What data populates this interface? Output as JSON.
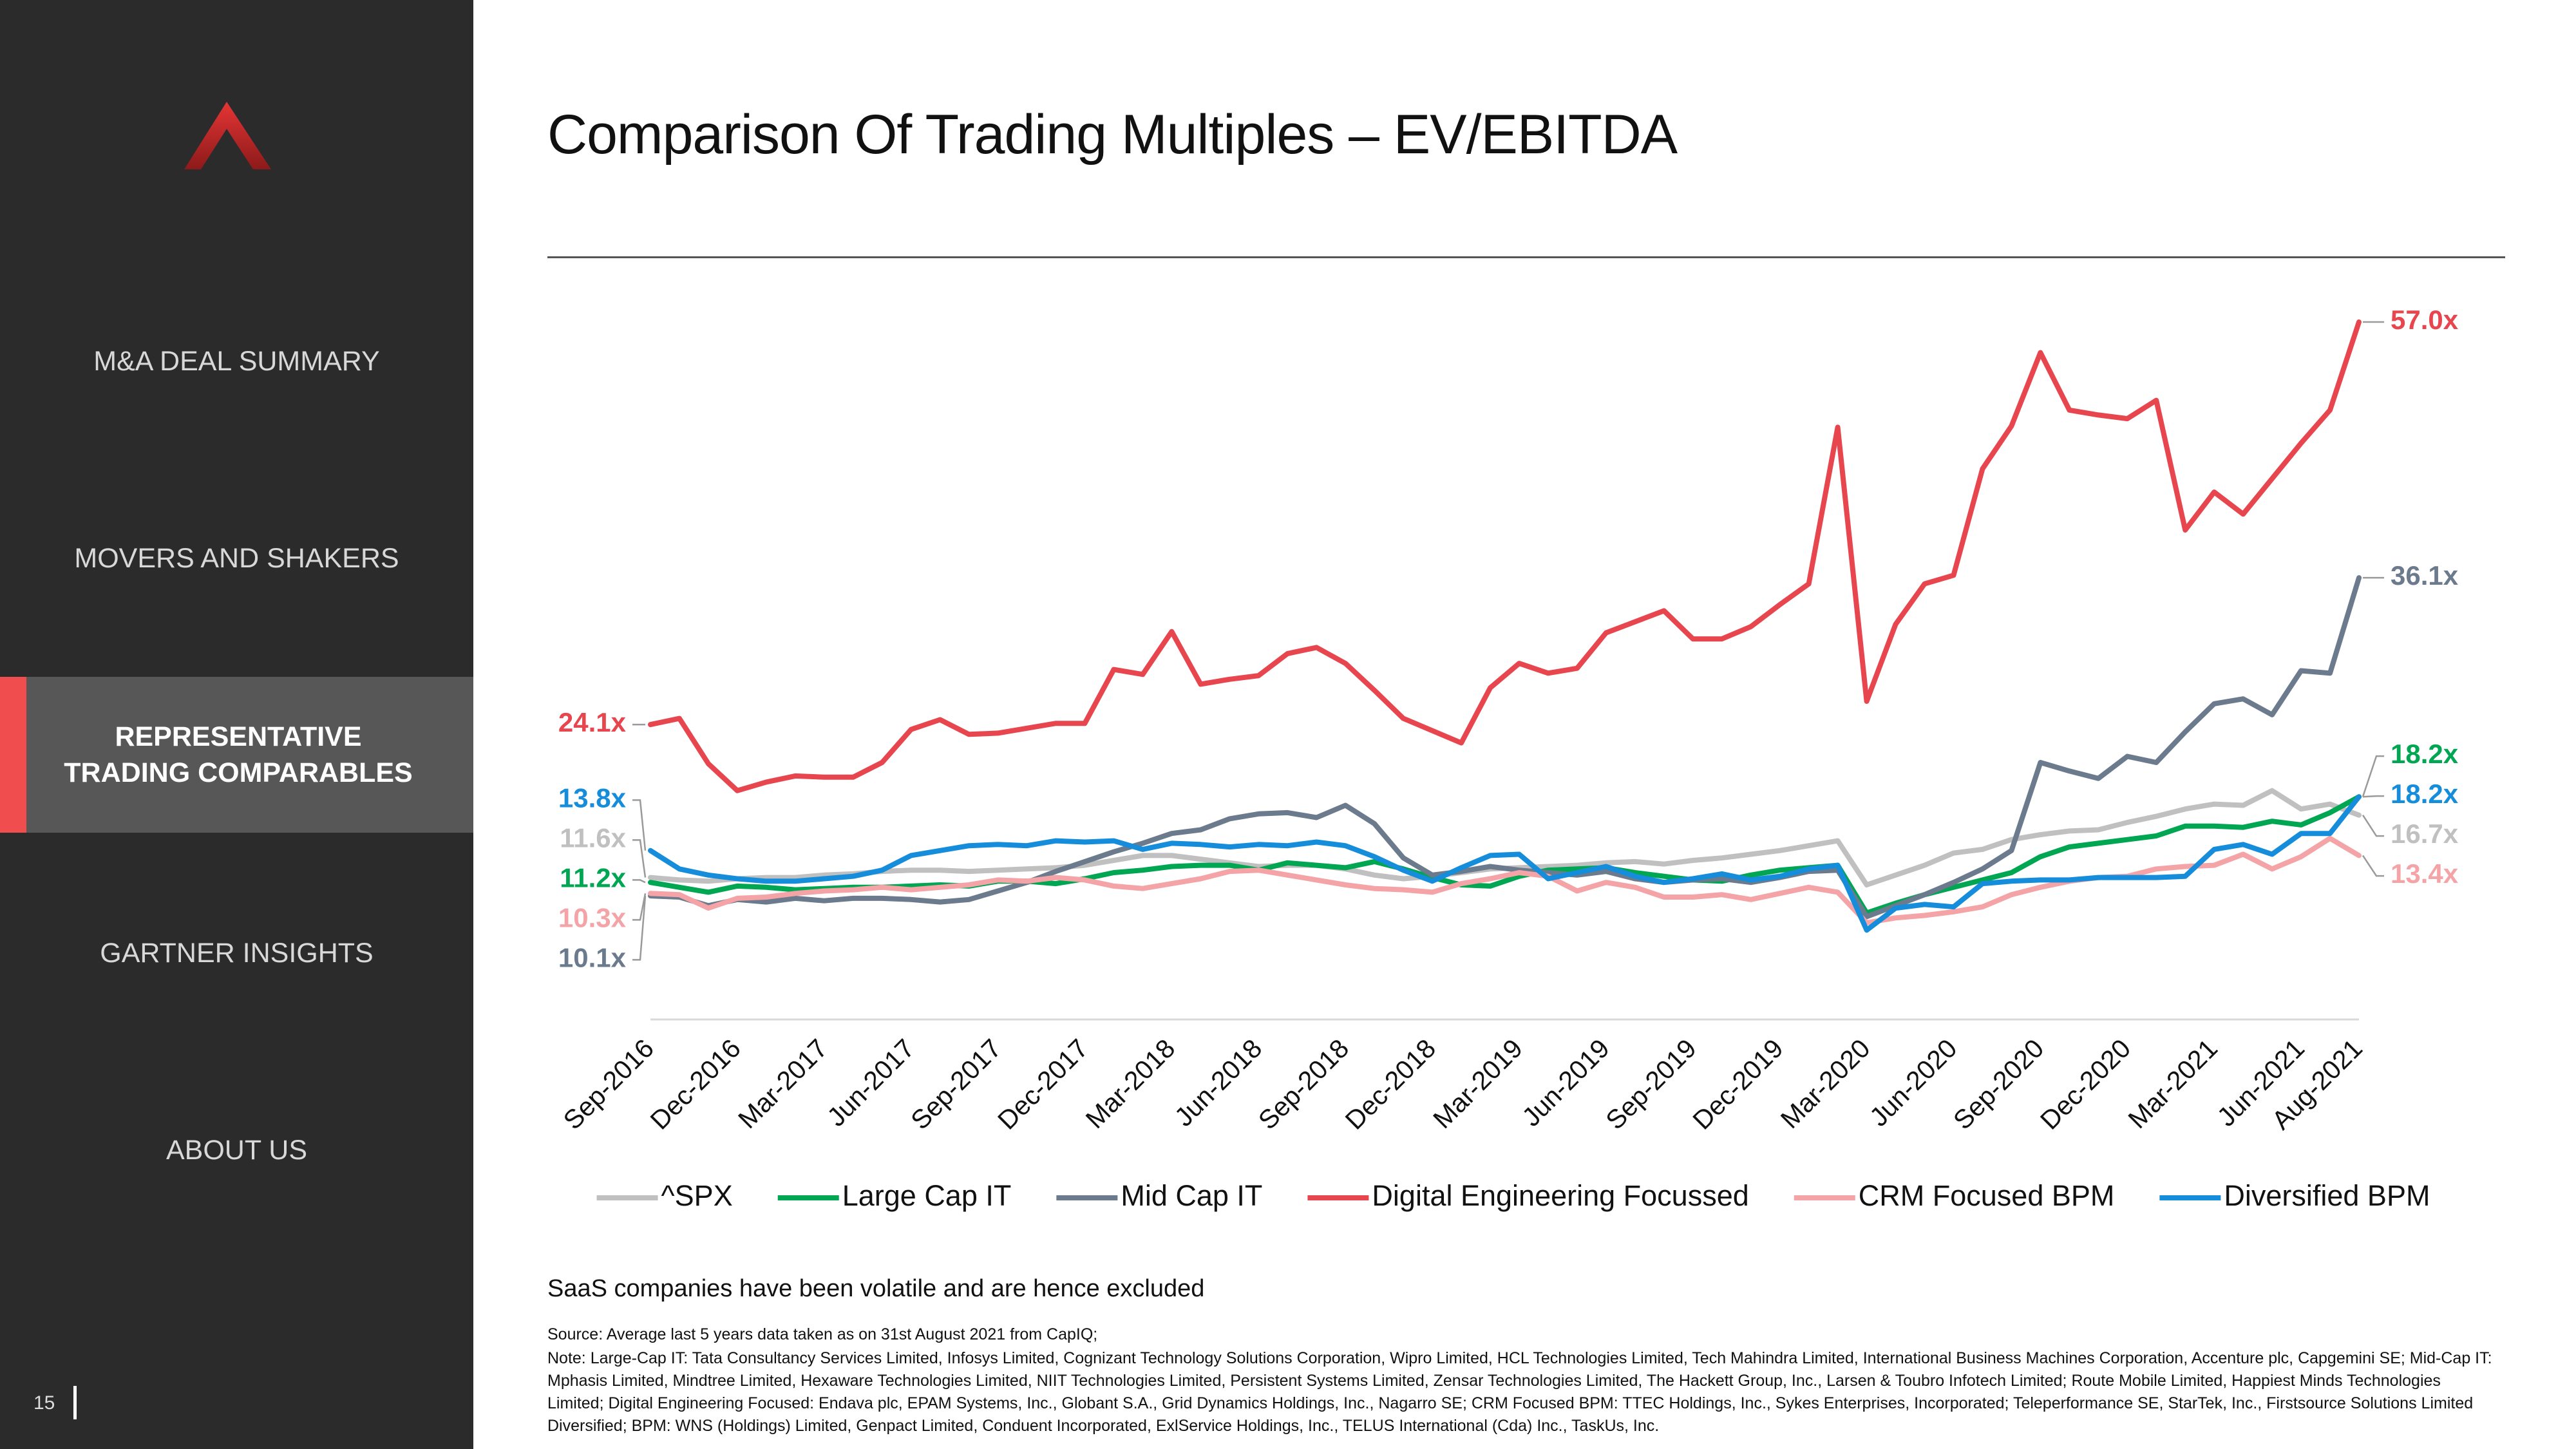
{
  "sidebar": {
    "nav": [
      "M&A DEAL SUMMARY",
      "MOVERS AND SHAKERS",
      "REPRESENTATIVE TRADING COMPARABLES",
      "GARTNER INSIGHTS",
      "ABOUT US"
    ],
    "page_number": "15"
  },
  "title": "Comparison Of Trading Multiples – EV/EBITDA",
  "chart_data": {
    "type": "line",
    "categories": [
      "Sep-2016",
      null,
      null,
      "Dec-2016",
      null,
      null,
      "Mar-2017",
      null,
      null,
      "Jun-2017",
      null,
      null,
      "Sep-2017",
      null,
      null,
      "Dec-2017",
      null,
      null,
      "Mar-2018",
      null,
      null,
      "Jun-2018",
      null,
      null,
      "Sep-2018",
      null,
      null,
      "Dec-2018",
      null,
      null,
      "Mar-2019",
      null,
      null,
      "Jun-2019",
      null,
      null,
      "Sep-2019",
      null,
      null,
      "Dec-2019",
      null,
      null,
      "Mar-2020",
      null,
      null,
      "Jun-2020",
      null,
      null,
      "Sep-2020",
      null,
      null,
      "Dec-2020",
      null,
      null,
      "Mar-2021",
      null,
      null,
      "Jun-2021",
      null,
      "Aug-2021"
    ],
    "ylim": [
      0,
      60
    ],
    "series": [
      {
        "name": "^SPX",
        "color": "#c0c0c0",
        "values": [
          11.6,
          11.4,
          11.3,
          11.5,
          11.6,
          11.6,
          11.8,
          11.9,
          12.1,
          12.2,
          12.2,
          12.1,
          12.2,
          12.3,
          12.4,
          12.6,
          13.0,
          13.4,
          13.4,
          13.1,
          12.8,
          12.5,
          12.6,
          12.6,
          12.3,
          11.8,
          11.5,
          11.7,
          12.0,
          12.3,
          12.4,
          12.5,
          12.6,
          12.8,
          12.9,
          12.7,
          13.0,
          13.2,
          13.5,
          13.8,
          14.2,
          14.6,
          11.0,
          11.8,
          12.6,
          13.6,
          13.9,
          14.7,
          15.1,
          15.4,
          15.5,
          16.1,
          16.6,
          17.2,
          17.6,
          17.5,
          18.7,
          17.2,
          17.6,
          16.7
        ],
        "value_labels": [
          "11.6x",
          null,
          null,
          null,
          null,
          null,
          null,
          null,
          null,
          null,
          null,
          null,
          null,
          null,
          null,
          null,
          null,
          null,
          null,
          null,
          null,
          null,
          null,
          null,
          null,
          null,
          null,
          null,
          null,
          null,
          null,
          null,
          null,
          null,
          null,
          null,
          null,
          null,
          null,
          null,
          null,
          null,
          null,
          null,
          null,
          null,
          null,
          null,
          null,
          null,
          null,
          null,
          null,
          null,
          null,
          null,
          null,
          null,
          null,
          "16.7x"
        ]
      },
      {
        "name": "Large Cap IT",
        "color": "#00a651",
        "values": [
          11.2,
          10.8,
          10.4,
          10.9,
          10.8,
          10.6,
          10.7,
          10.8,
          10.8,
          10.9,
          11.0,
          10.9,
          11.3,
          11.3,
          11.1,
          11.5,
          12.0,
          12.2,
          12.5,
          12.6,
          12.6,
          12.2,
          12.8,
          12.6,
          12.4,
          12.9,
          12.3,
          11.6,
          11.0,
          10.9,
          11.7,
          12.2,
          12.3,
          12.4,
          12.0,
          11.7,
          11.4,
          11.3,
          11.8,
          12.2,
          12.4,
          12.6,
          8.7,
          9.5,
          10.2,
          10.8,
          11.4,
          12.0,
          13.3,
          14.1,
          14.4,
          14.7,
          15.0,
          15.8,
          15.8,
          15.7,
          16.2,
          15.9,
          16.9,
          18.2
        ],
        "value_labels": [
          "11.2x",
          null,
          null,
          null,
          null,
          null,
          null,
          null,
          null,
          null,
          null,
          null,
          null,
          null,
          null,
          null,
          null,
          null,
          null,
          null,
          null,
          null,
          null,
          null,
          null,
          null,
          null,
          null,
          null,
          null,
          null,
          null,
          null,
          null,
          null,
          null,
          null,
          null,
          null,
          null,
          null,
          null,
          null,
          null,
          null,
          null,
          null,
          null,
          null,
          null,
          null,
          null,
          null,
          null,
          null,
          null,
          null,
          null,
          null,
          "18.2x"
        ]
      },
      {
        "name": "Mid Cap IT",
        "color": "#6b7a8c",
        "values": [
          10.1,
          10.0,
          9.3,
          9.8,
          9.6,
          9.9,
          9.7,
          9.9,
          9.9,
          9.8,
          9.6,
          9.8,
          10.5,
          11.2,
          12.1,
          12.9,
          13.7,
          14.4,
          15.2,
          15.5,
          16.4,
          16.8,
          16.9,
          16.5,
          17.5,
          16.0,
          13.2,
          11.8,
          12.1,
          12.5,
          12.2,
          12.0,
          11.8,
          12.1,
          11.5,
          11.2,
          11.4,
          11.5,
          11.2,
          11.6,
          12.1,
          12.2,
          8.4,
          9.3,
          10.2,
          11.2,
          12.3,
          13.8,
          21.0,
          20.3,
          19.7,
          21.5,
          21.0,
          23.5,
          25.8,
          26.2,
          24.9,
          28.5,
          28.3,
          36.1
        ],
        "value_labels": [
          "10.1x",
          null,
          null,
          null,
          null,
          null,
          null,
          null,
          null,
          null,
          null,
          null,
          null,
          null,
          null,
          null,
          null,
          null,
          null,
          null,
          null,
          null,
          null,
          null,
          null,
          null,
          null,
          null,
          null,
          null,
          null,
          null,
          null,
          null,
          null,
          null,
          null,
          null,
          null,
          null,
          null,
          null,
          null,
          null,
          null,
          null,
          null,
          null,
          null,
          null,
          null,
          null,
          null,
          null,
          null,
          null,
          null,
          null,
          null,
          "36.1x"
        ]
      },
      {
        "name": "Digital Engineering Focussed",
        "color": "#e8464e",
        "values": [
          24.1,
          24.6,
          20.9,
          18.7,
          19.4,
          19.9,
          19.8,
          19.8,
          21.0,
          23.7,
          24.5,
          23.3,
          23.4,
          23.8,
          24.2,
          24.2,
          28.6,
          28.2,
          31.7,
          27.4,
          27.8,
          28.1,
          29.9,
          30.4,
          29.1,
          26.9,
          24.6,
          23.6,
          22.6,
          27.1,
          29.1,
          28.3,
          28.7,
          31.6,
          32.5,
          33.4,
          31.1,
          31.1,
          32.1,
          33.9,
          35.6,
          48.4,
          26.0,
          32.3,
          35.6,
          36.3,
          45.0,
          48.5,
          54.5,
          49.8,
          49.4,
          49.1,
          50.6,
          40.0,
          43.1,
          41.3,
          44.2,
          47.1,
          49.8,
          57.0
        ],
        "value_labels": [
          "24.1x",
          null,
          null,
          null,
          null,
          null,
          null,
          null,
          null,
          null,
          null,
          null,
          null,
          null,
          null,
          null,
          null,
          null,
          null,
          null,
          null,
          null,
          null,
          null,
          null,
          null,
          null,
          null,
          null,
          null,
          null,
          null,
          null,
          null,
          null,
          null,
          null,
          null,
          null,
          null,
          null,
          null,
          null,
          null,
          null,
          null,
          null,
          null,
          null,
          null,
          null,
          null,
          null,
          null,
          null,
          null,
          null,
          null,
          null,
          "57.0x"
        ]
      },
      {
        "name": "CRM Focused BPM",
        "color": "#f4a3a6",
        "values": [
          10.3,
          10.2,
          9.1,
          9.9,
          10.0,
          10.3,
          10.5,
          10.6,
          10.8,
          10.6,
          10.8,
          11.0,
          11.4,
          11.3,
          11.6,
          11.4,
          10.9,
          10.7,
          11.1,
          11.5,
          12.1,
          12.2,
          11.8,
          11.4,
          11.0,
          10.7,
          10.6,
          10.4,
          11.1,
          11.5,
          12.0,
          11.7,
          10.5,
          11.2,
          10.8,
          10.0,
          10.0,
          10.2,
          9.8,
          10.3,
          10.8,
          10.4,
          7.9,
          8.3,
          8.5,
          8.8,
          9.2,
          10.2,
          10.8,
          11.3,
          11.6,
          11.7,
          12.3,
          12.5,
          12.6,
          13.5,
          12.3,
          13.3,
          14.8,
          13.4
        ],
        "value_labels": [
          "10.3x",
          null,
          null,
          null,
          null,
          null,
          null,
          null,
          null,
          null,
          null,
          null,
          null,
          null,
          null,
          null,
          null,
          null,
          null,
          null,
          null,
          null,
          null,
          null,
          null,
          null,
          null,
          null,
          null,
          null,
          null,
          null,
          null,
          null,
          null,
          null,
          null,
          null,
          null,
          null,
          null,
          null,
          null,
          null,
          null,
          null,
          null,
          null,
          null,
          null,
          null,
          null,
          null,
          null,
          null,
          null,
          null,
          null,
          null,
          "13.4x"
        ]
      },
      {
        "name": "Diversified BPM",
        "color": "#168ddb",
        "values": [
          13.8,
          12.3,
          11.8,
          11.5,
          11.3,
          11.3,
          11.5,
          11.7,
          12.2,
          13.4,
          13.8,
          14.2,
          14.3,
          14.2,
          14.6,
          14.5,
          14.6,
          13.9,
          14.4,
          14.3,
          14.1,
          14.3,
          14.2,
          14.5,
          14.2,
          13.3,
          12.2,
          11.3,
          12.4,
          13.4,
          13.5,
          11.5,
          12.0,
          12.5,
          11.7,
          11.2,
          11.5,
          11.9,
          11.4,
          11.7,
          12.3,
          12.6,
          7.3,
          9.1,
          9.4,
          9.2,
          11.1,
          11.3,
          11.4,
          11.4,
          11.6,
          11.6,
          11.6,
          11.7,
          13.9,
          14.3,
          13.5,
          15.2,
          15.2,
          18.2
        ],
        "value_labels": [
          "13.8x",
          null,
          null,
          null,
          null,
          null,
          null,
          null,
          null,
          null,
          null,
          null,
          null,
          null,
          null,
          null,
          null,
          null,
          null,
          null,
          null,
          null,
          null,
          null,
          null,
          null,
          null,
          null,
          null,
          null,
          null,
          null,
          null,
          null,
          null,
          null,
          null,
          null,
          null,
          null,
          null,
          null,
          null,
          null,
          null,
          null,
          null,
          null,
          null,
          null,
          null,
          null,
          null,
          null,
          null,
          null,
          null,
          null,
          null,
          "18.2x"
        ]
      }
    ]
  },
  "subtitle": "SaaS companies have been volatile and are hence excluded",
  "source": "Source: Average last 5 years data taken as on 31st August 2021 from CapIQ;",
  "note": "Note: Large-Cap IT: Tata Consultancy Services Limited, Infosys Limited, Cognizant Technology Solutions Corporation, Wipro Limited, HCL Technologies Limited, Tech Mahindra Limited, International Business Machines Corporation, Accenture plc, Capgemini SE; Mid-Cap IT: Mphasis Limited, Mindtree Limited, Hexaware Technologies Limited, NIIT Technologies Limited, Persistent Systems Limited, Zensar Technologies Limited, The Hackett Group, Inc., Larsen & Toubro Infotech Limited; Route Mobile Limited, Happiest Minds Technologies Limited; Digital Engineering Focused: Endava plc, EPAM Systems, Inc., Globant S.A., Grid Dynamics Holdings, Inc., Nagarro SE; CRM Focused BPM: TTEC Holdings, Inc., Sykes Enterprises, Incorporated; Teleperformance SE, StarTek, Inc., Firstsource Solutions Limited Diversified; BPM: WNS (Holdings) Limited, Genpact Limited, Conduent Incorporated, ExlService Holdings, Inc., TELUS International (Cda) Inc., TaskUs, Inc."
}
